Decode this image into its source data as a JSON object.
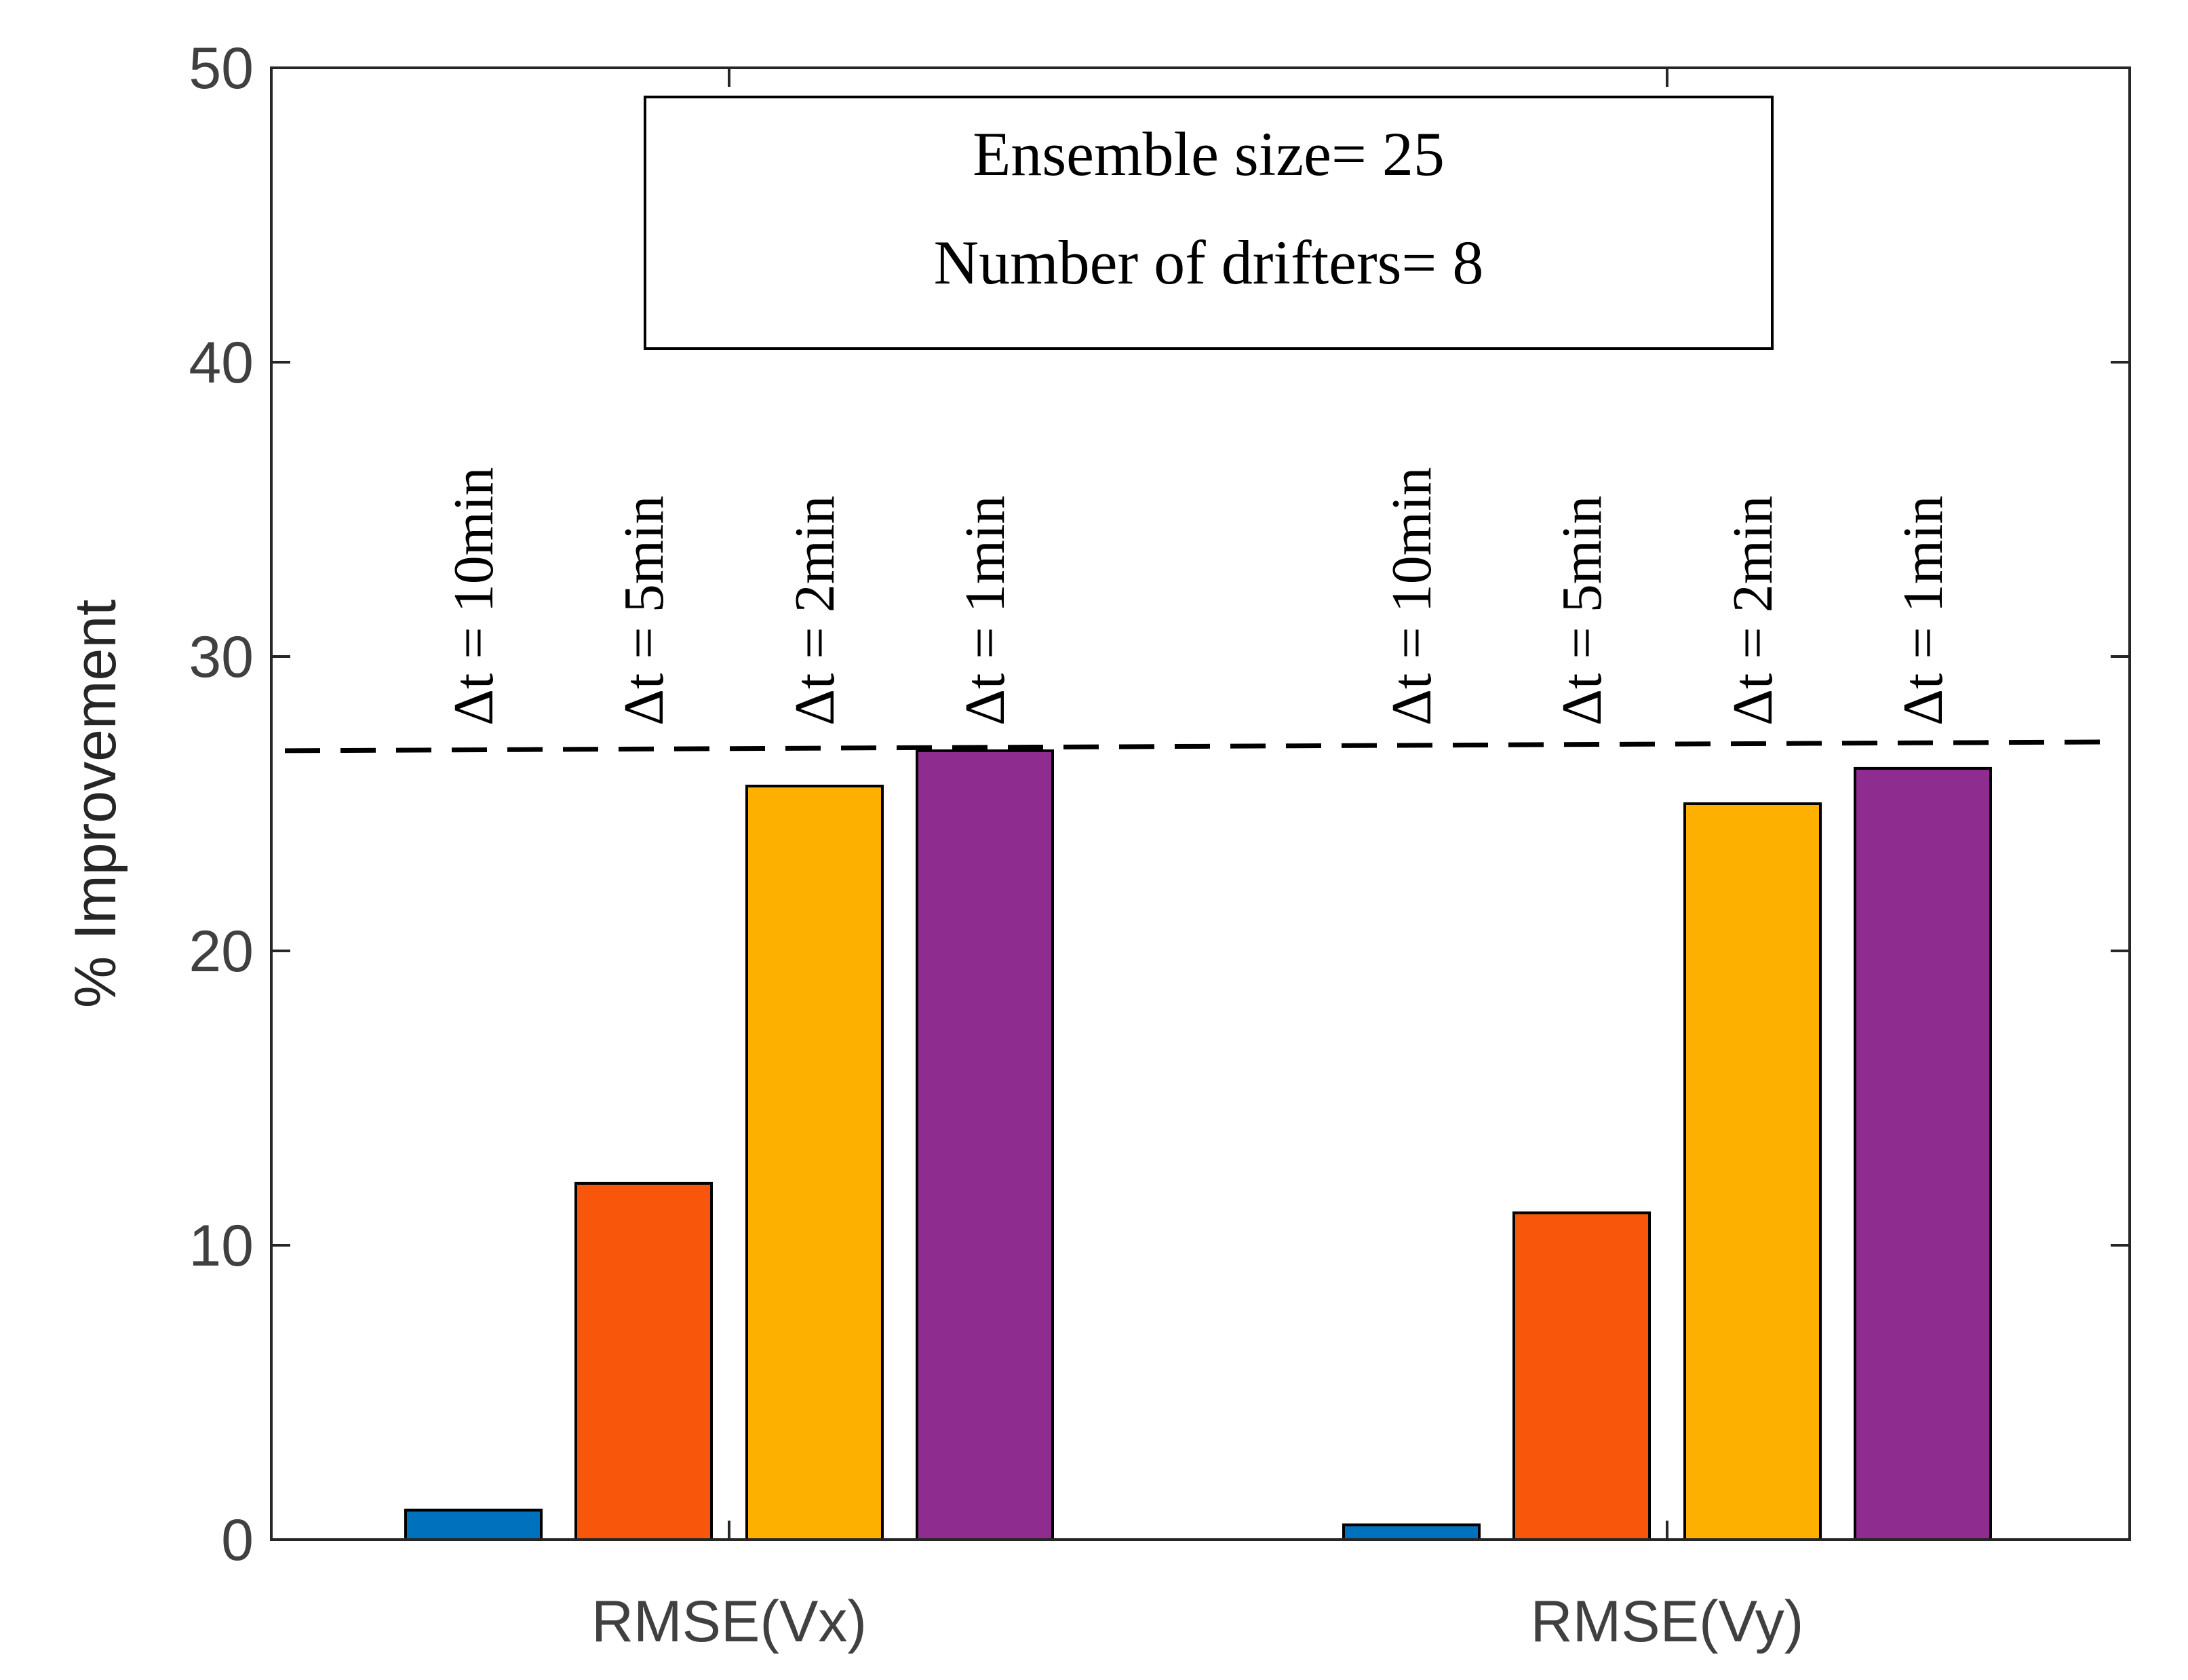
{
  "chart_data": {
    "type": "bar",
    "categories": [
      "RMSE(Vx)",
      "RMSE(Vy)"
    ],
    "series": [
      {
        "name": "Δt = 10min",
        "color": "#0072BD",
        "values": [
          1.0,
          0.5
        ]
      },
      {
        "name": "Δt = 5min",
        "color": "#F8560A",
        "values": [
          12.1,
          11.1
        ]
      },
      {
        "name": "Δt = 2min",
        "color": "#FDB000",
        "values": [
          25.6,
          25.0
        ]
      },
      {
        "name": "Δt = 1min",
        "color": "#8E2C8F",
        "values": [
          26.8,
          26.2
        ]
      }
    ],
    "reference_line": {
      "style": "dashed",
      "y_start": 26.8,
      "y_end": 27.1
    },
    "title": "",
    "xlabel": "",
    "ylabel": "% Improvement",
    "ylim": [
      0,
      50
    ],
    "yticks": [
      0,
      10,
      20,
      30,
      40,
      50
    ],
    "grid": false,
    "annotation": {
      "line1": "Ensemble size= 25",
      "line2": "Number of drifters= 8"
    }
  }
}
